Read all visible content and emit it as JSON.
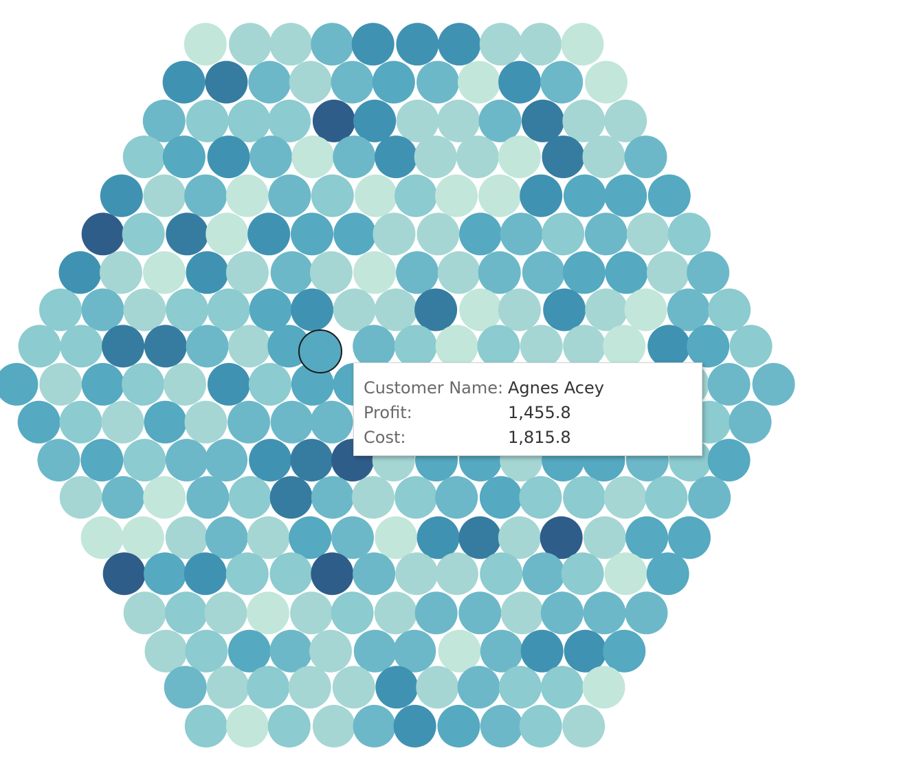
{
  "chart_data": {
    "type": "scatter",
    "kind": "packed-bubble",
    "title": "",
    "legend": "none",
    "grid": false,
    "color_scale": [
      "#c2e6da",
      "#a5d6d3",
      "#8ccbcf",
      "#6cb8c9",
      "#55a9c1",
      "#4092b2",
      "#367ca0",
      "#2f5d8a"
    ],
    "highlighted_mark": {
      "customer_name": "Agnes Acey",
      "profit": "1,455.8",
      "cost": "1,815.8"
    }
  },
  "tooltip": {
    "rows": [
      {
        "label": "Customer Name:",
        "value": "Agnes Acey"
      },
      {
        "label": "Profit:",
        "value": "1,455.8"
      },
      {
        "label": "Cost:",
        "value": "1,815.8"
      }
    ]
  }
}
